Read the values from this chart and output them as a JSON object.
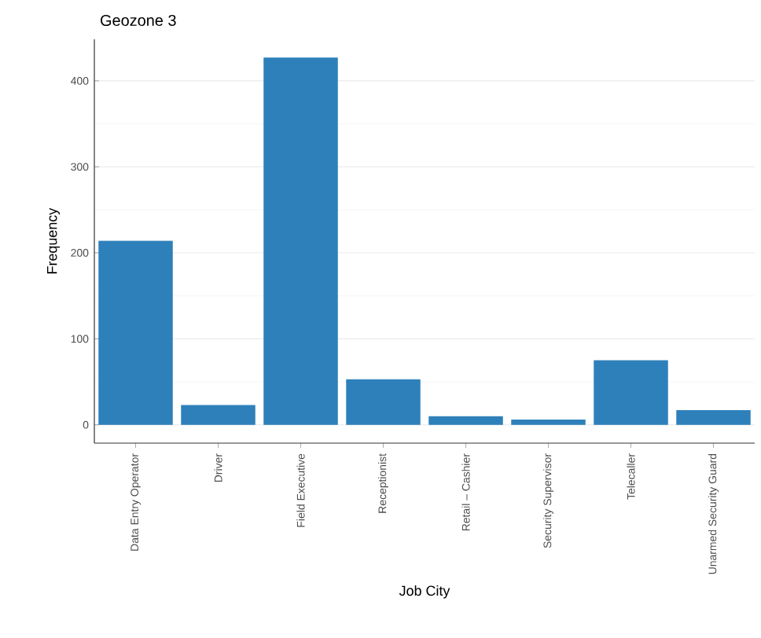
{
  "chart_data": {
    "type": "bar",
    "title": "Geozone 3",
    "xlabel": "Job City",
    "ylabel": "Frequency",
    "categories": [
      "Data Entry Operator",
      "Driver",
      "Field Executive",
      "Receptionist",
      "Retail – Cashier",
      "Security Supervisor",
      "Telecaller",
      "Unarmed Security Guard"
    ],
    "values": [
      214,
      23,
      427,
      53,
      10,
      6,
      75,
      17
    ],
    "color": "#2e80ba",
    "ylim": [
      -21.35,
      448.35
    ],
    "yticks": [
      0,
      100,
      200,
      300,
      400
    ],
    "grid": "y"
  }
}
